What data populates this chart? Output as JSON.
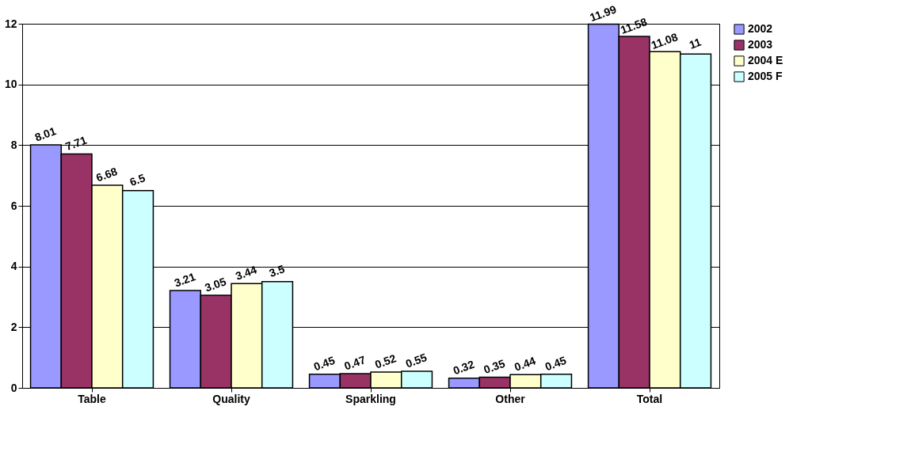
{
  "chart_data": {
    "type": "bar",
    "categories": [
      "Table",
      "Quality",
      "Sparkling",
      "Other",
      "Total"
    ],
    "series": [
      {
        "name": "2002",
        "color": "#9999ff",
        "values": [
          8.01,
          3.21,
          0.45,
          0.32,
          11.99
        ]
      },
      {
        "name": "2003",
        "color": "#993366",
        "values": [
          7.71,
          3.05,
          0.47,
          0.35,
          11.58
        ]
      },
      {
        "name": "2004 E",
        "color": "#ffffcc",
        "values": [
          6.68,
          3.44,
          0.52,
          0.44,
          11.08
        ]
      },
      {
        "name": "2005 F",
        "color": "#ccffff",
        "values": [
          6.5,
          3.5,
          0.55,
          0.45,
          11
        ]
      }
    ],
    "ylim": [
      0,
      12
    ],
    "yticks": [
      0,
      2,
      4,
      6,
      8,
      10,
      12
    ],
    "grid": "y",
    "legend": "right",
    "data_labels": true
  }
}
